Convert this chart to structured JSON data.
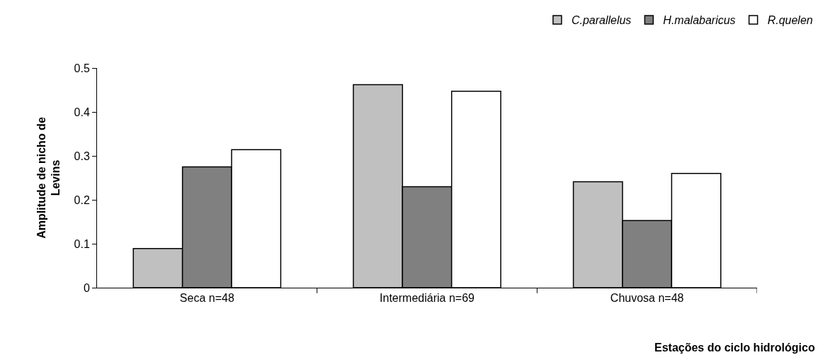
{
  "chart_data": {
    "type": "bar",
    "xlabel": "Estações do ciclo hidrológico",
    "ylabel": "Amplitude de nicho de\nLevins",
    "categories": [
      "Seca n=48",
      "Intermediária n=69",
      "Chuvosa n=48"
    ],
    "series": [
      {
        "name": "C.parallelus",
        "color": "#c0c0c0",
        "values": [
          0.089,
          0.462,
          0.241
        ]
      },
      {
        "name": "H.malabaricus",
        "color": "#808080",
        "values": [
          0.275,
          0.23,
          0.153
        ]
      },
      {
        "name": "R.quelen",
        "color": "#ffffff",
        "values": [
          0.314,
          0.447,
          0.26
        ]
      }
    ],
    "ylim": [
      0,
      0.5
    ],
    "yticks": [
      0,
      0.1,
      0.2,
      0.3,
      0.4,
      0.5
    ],
    "legend": "top right"
  }
}
